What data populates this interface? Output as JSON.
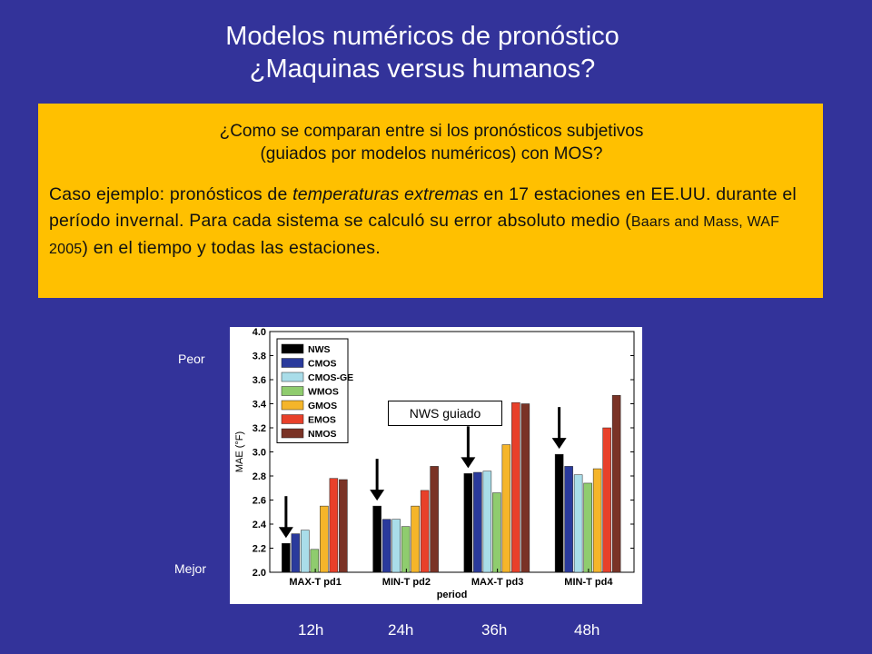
{
  "title_line1": "Modelos numéricos de pronóstico",
  "title_line2": "¿Maquinas versus humanos?",
  "box": {
    "question_line1": "¿Como se comparan entre si los pronósticos subjetivos",
    "question_line2": "(guiados por modelos numéricos) con MOS?",
    "body_part1": "Caso ejemplo: pronósticos de ",
    "body_italic": "temperaturas extremas",
    "body_part2": " en 17 estaciones en EE.UU. durante el período invernal. Para cada sistema se calculó su error absoluto medio (",
    "body_ref": "Baars and Mass, WAF 2005",
    "body_part3": ") en el tiempo y todas las estaciones."
  },
  "labels": {
    "peor": "Peor",
    "mejor": "Mejor",
    "callout": "NWS guiado",
    "hours": [
      "12h",
      "24h",
      "36h",
      "48h"
    ]
  },
  "chart_data": {
    "type": "bar",
    "xlabel": "period",
    "ylabel": "MAE (°F)",
    "ylim": [
      2.0,
      4.0
    ],
    "yticks": [
      "2.0",
      "2.2",
      "2.4",
      "2.6",
      "2.8",
      "3.0",
      "3.2",
      "3.4",
      "3.6",
      "3.8",
      "4.0"
    ],
    "categories": [
      "MAX-T pd1",
      "MIN-T pd2",
      "MAX-T pd3",
      "MIN-T pd4"
    ],
    "legend_position": "top-left",
    "series": [
      {
        "name": "NWS",
        "color": "#000000",
        "values": [
          2.24,
          2.55,
          2.82,
          2.98
        ]
      },
      {
        "name": "CMOS",
        "color": "#2a3a9c",
        "values": [
          2.32,
          2.44,
          2.83,
          2.88
        ]
      },
      {
        "name": "CMOS-GE",
        "color": "#a9dde9",
        "values": [
          2.35,
          2.44,
          2.84,
          2.81
        ]
      },
      {
        "name": "WMOS",
        "color": "#8fcc6e",
        "values": [
          2.19,
          2.38,
          2.66,
          2.74
        ]
      },
      {
        "name": "GMOS",
        "color": "#f5b52a",
        "values": [
          2.55,
          2.55,
          3.06,
          2.86
        ]
      },
      {
        "name": "EMOS",
        "color": "#e8402a",
        "values": [
          2.78,
          2.68,
          3.41,
          3.2
        ]
      },
      {
        "name": "NMOS",
        "color": "#7a3326",
        "values": [
          2.77,
          2.88,
          3.4,
          3.47
        ]
      }
    ],
    "arrows_on_category_index": [
      0,
      1,
      2,
      3
    ]
  }
}
